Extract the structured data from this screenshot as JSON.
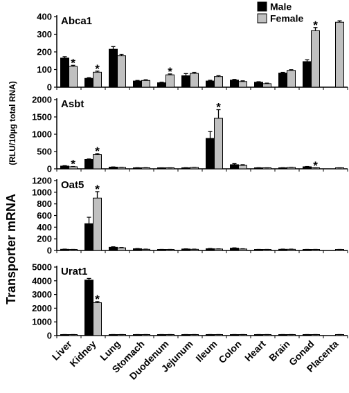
{
  "chart_data": {
    "type": "bar",
    "ylabel_main": "Transporter mRNA",
    "ylabel_sub": "(RLU/10µg total RNA)",
    "categories": [
      "Liver",
      "Kidney",
      "Lung",
      "Stomach",
      "Duodenum",
      "Jejunum",
      "Ileum",
      "Colon",
      "Heart",
      "Brain",
      "Gonad",
      "Placenta"
    ],
    "legend": {
      "position": "top-right",
      "entries": [
        {
          "name": "Male",
          "color": "#000000"
        },
        {
          "name": "Female",
          "color": "#c0c0c0"
        }
      ]
    },
    "colors": {
      "male": "#000000",
      "female": "#c0c0c0"
    },
    "significance_marker": "*",
    "panels": [
      {
        "title": "Abca1",
        "ylim": [
          0,
          400
        ],
        "yticks": [
          0,
          100,
          200,
          300,
          400
        ],
        "series": [
          {
            "name": "Male",
            "values": [
              165,
              50,
              215,
              35,
              25,
              65,
              35,
              40,
              28,
              80,
              145,
              null
            ],
            "errors": [
              8,
              4,
              15,
              3,
              3,
              12,
              4,
              4,
              3,
              4,
              10,
              null
            ]
          },
          {
            "name": "Female",
            "values": [
              118,
              85,
              178,
              38,
              70,
              78,
              60,
              32,
              20,
              95,
              320,
              368
            ],
            "errors": [
              6,
              6,
              8,
              4,
              5,
              6,
              5,
              4,
              3,
              4,
              18,
              8
            ]
          }
        ],
        "significance": [
          {
            "category": "Liver",
            "series": "Female"
          },
          {
            "category": "Kidney",
            "series": "Female"
          },
          {
            "category": "Duodenum",
            "series": "Female"
          },
          {
            "category": "Gonad",
            "series": "Female"
          }
        ]
      },
      {
        "title": "Asbt",
        "ylim": [
          0,
          2000
        ],
        "yticks": [
          0,
          500,
          1000,
          1500,
          2000
        ],
        "series": [
          {
            "name": "Male",
            "values": [
              80,
              270,
              50,
              30,
              25,
              30,
              880,
              120,
              30,
              30,
              60,
              null
            ],
            "errors": [
              10,
              15,
              5,
              3,
              3,
              3,
              200,
              30,
              3,
              3,
              8,
              null
            ]
          },
          {
            "name": "Female",
            "values": [
              60,
              410,
              40,
              30,
              25,
              40,
              1460,
              100,
              25,
              40,
              20,
              20
            ],
            "errors": [
              8,
              30,
              5,
              3,
              3,
              4,
              250,
              20,
              3,
              4,
              3,
              3
            ]
          }
        ],
        "significance": [
          {
            "category": "Liver",
            "series": "Female"
          },
          {
            "category": "Kidney",
            "series": "Female"
          },
          {
            "category": "Ileum",
            "series": "Female"
          },
          {
            "category": "Gonad",
            "series": "Female"
          }
        ]
      },
      {
        "title": "Oat5",
        "ylim": [
          0,
          1200
        ],
        "yticks": [
          0,
          200,
          400,
          600,
          800,
          1000,
          1200
        ],
        "series": [
          {
            "name": "Male",
            "values": [
              20,
              460,
              55,
              30,
              15,
              25,
              30,
              40,
              15,
              20,
              15,
              null
            ],
            "errors": [
              3,
              110,
              8,
              3,
              2,
              3,
              4,
              5,
              2,
              3,
              2,
              null
            ]
          },
          {
            "name": "Female",
            "values": [
              15,
              900,
              45,
              20,
              15,
              20,
              25,
              25,
              10,
              20,
              15,
              10
            ],
            "errors": [
              2,
              110,
              6,
              3,
              2,
              3,
              3,
              4,
              2,
              3,
              2,
              2
            ]
          }
        ],
        "significance": [
          {
            "category": "Kidney",
            "series": "Female"
          }
        ]
      },
      {
        "title": "Urat1",
        "ylim": [
          0,
          5000
        ],
        "yticks": [
          0,
          1000,
          2000,
          3000,
          4000,
          5000
        ],
        "series": [
          {
            "name": "Male",
            "values": [
              15,
              4050,
              20,
              15,
              15,
              15,
              15,
              15,
              10,
              10,
              10,
              null
            ],
            "errors": [
              2,
              120,
              3,
              2,
              2,
              2,
              2,
              2,
              2,
              2,
              2,
              null
            ]
          },
          {
            "name": "Female",
            "values": [
              10,
              2400,
              15,
              10,
              10,
              10,
              10,
              10,
              10,
              10,
              10,
              10
            ],
            "errors": [
              2,
              80,
              2,
              2,
              2,
              2,
              2,
              2,
              2,
              2,
              2,
              2
            ]
          }
        ],
        "significance": [
          {
            "category": "Kidney",
            "series": "Female"
          }
        ]
      }
    ]
  }
}
